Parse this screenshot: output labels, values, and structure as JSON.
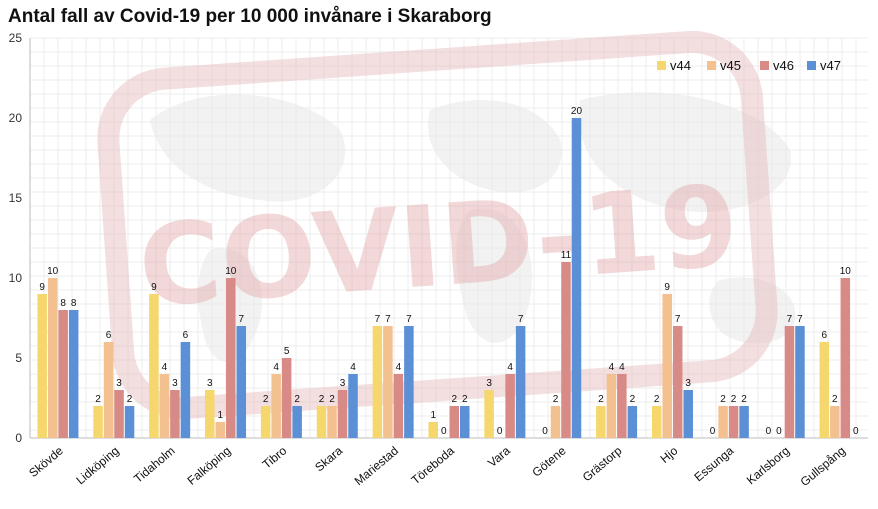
{
  "chart_data": {
    "type": "bar",
    "title": "Antal fall av Covid-19 per 10 000 invånare i Skaraborg",
    "xlabel": "",
    "ylabel": "",
    "ylim": [
      0,
      25
    ],
    "yticks": [
      0,
      5,
      10,
      15,
      20,
      25
    ],
    "grid": true,
    "legend_position": "top-right",
    "categories": [
      "Skövde",
      "Lidköping",
      "Tidaholm",
      "Falköping",
      "Tibro",
      "Skara",
      "Mariestad",
      "Töreboda",
      "Vara",
      "Götene",
      "Grästorp",
      "Hjo",
      "Essunga",
      "Karlsborg",
      "Gullspång"
    ],
    "series": [
      {
        "name": "v44",
        "color": "#f5d76e",
        "values": [
          9,
          2,
          9,
          3,
          2,
          2,
          7,
          1,
          3,
          0,
          2,
          2,
          0,
          0,
          6
        ]
      },
      {
        "name": "v45",
        "color": "#f3c08f",
        "values": [
          10,
          6,
          4,
          1,
          4,
          2,
          7,
          0,
          0,
          2,
          4,
          9,
          2,
          0,
          2
        ]
      },
      {
        "name": "v46",
        "color": "#d88a86",
        "values": [
          8,
          3,
          3,
          10,
          5,
          3,
          4,
          2,
          4,
          11,
          4,
          7,
          2,
          7,
          10
        ]
      },
      {
        "name": "v47",
        "color": "#5b8fd6",
        "values": [
          8,
          2,
          6,
          7,
          2,
          4,
          7,
          2,
          7,
          20,
          2,
          3,
          2,
          7,
          0
        ]
      }
    ],
    "watermark_text": "COVID-19"
  }
}
